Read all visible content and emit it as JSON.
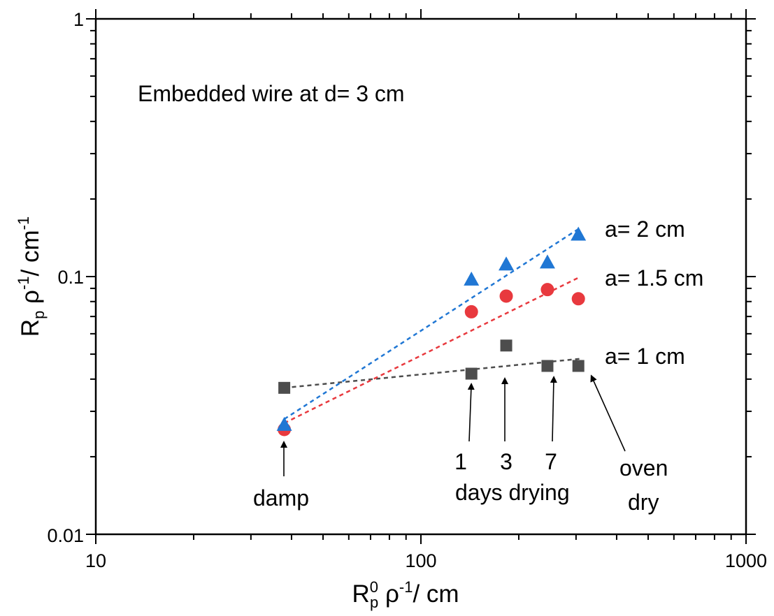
{
  "chart_data": {
    "type": "scatter",
    "xscale": "log",
    "yscale": "log",
    "xlim": [
      10,
      1000
    ],
    "ylim": [
      0.01,
      1
    ],
    "grid": false,
    "legend": "none",
    "xticks": [
      "10",
      "100",
      "1000"
    ],
    "yticks": [
      "0.01",
      "0.1",
      "1"
    ],
    "annotation_title": "Embedded wire at d= 3 cm",
    "ylabel": {
      "base": "R",
      "base_sub": "p",
      "rho": "ρ",
      "rho_sup": "-1",
      "unit": "/ cm",
      "unit_sup": "-1"
    },
    "xlabel": {
      "base": "R",
      "base_sub": "p",
      "base_sup": "0",
      "rho": "ρ",
      "rho_sup": "-1",
      "unit": "/ cm"
    },
    "series": [
      {
        "label": "a= 1 cm",
        "marker": "square",
        "color": "#4d4d4d",
        "points": [
          [
            38,
            0.037
          ],
          [
            143,
            0.042
          ],
          [
            183,
            0.054
          ],
          [
            245,
            0.045
          ],
          [
            305,
            0.045
          ]
        ],
        "fit": [
          [
            38,
            0.037
          ],
          [
            310,
            0.048
          ]
        ]
      },
      {
        "label": "a= 1.5 cm",
        "marker": "circle",
        "color": "#e8393e",
        "points": [
          [
            38,
            0.0255
          ],
          [
            143,
            0.073
          ],
          [
            183,
            0.084
          ],
          [
            245,
            0.089
          ],
          [
            305,
            0.082
          ]
        ],
        "fit": [
          [
            38,
            0.027
          ],
          [
            310,
            0.1
          ]
        ]
      },
      {
        "label": "a= 2 cm",
        "marker": "triangle",
        "color": "#2077d4",
        "points": [
          [
            38,
            0.0265
          ],
          [
            143,
            0.097
          ],
          [
            183,
            0.111
          ],
          [
            245,
            0.113
          ],
          [
            305,
            0.145
          ]
        ],
        "fit": [
          [
            38,
            0.028
          ],
          [
            310,
            0.155
          ]
        ]
      }
    ],
    "annotations": {
      "damp": "damp",
      "day1": "1",
      "day3": "3",
      "day7": "7",
      "days_drying": "days drying",
      "oven": "oven",
      "dry": "dry"
    }
  }
}
